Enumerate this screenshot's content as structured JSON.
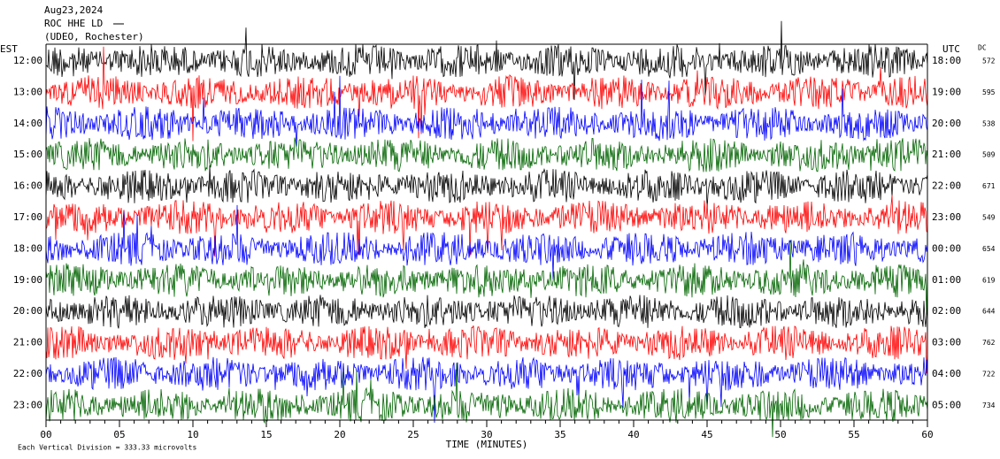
{
  "header": {
    "date": "Aug23,2024",
    "station": "ROC HHE LD",
    "location": "(UDEO, Rochester)"
  },
  "left_axis": {
    "title": "EST",
    "labels": [
      "12:00",
      "13:00",
      "14:00",
      "15:00",
      "16:00",
      "17:00",
      "18:00",
      "19:00",
      "20:00",
      "21:00",
      "22:00",
      "23:00"
    ]
  },
  "right_axis": {
    "title": "UTC",
    "labels": [
      "18:00",
      "19:00",
      "20:00",
      "21:00",
      "22:00",
      "23:00",
      "00:00",
      "01:00",
      "02:00",
      "03:00",
      "04:00",
      "05:00"
    ]
  },
  "dc": {
    "title": "DC",
    "values": [
      572,
      595,
      538,
      509,
      671,
      549,
      654,
      619,
      644,
      762,
      722,
      734
    ]
  },
  "time_axis": {
    "ticks": [
      "00",
      "05",
      "10",
      "15",
      "20",
      "25",
      "30",
      "35",
      "40",
      "45",
      "50",
      "55",
      "60"
    ],
    "title": "TIME (MINUTES)"
  },
  "trace_colors": [
    "#000000",
    "#ff0000",
    "#0000ff",
    "#006400"
  ],
  "footer": "Each Vertical Division =  333.33 microvolts"
}
